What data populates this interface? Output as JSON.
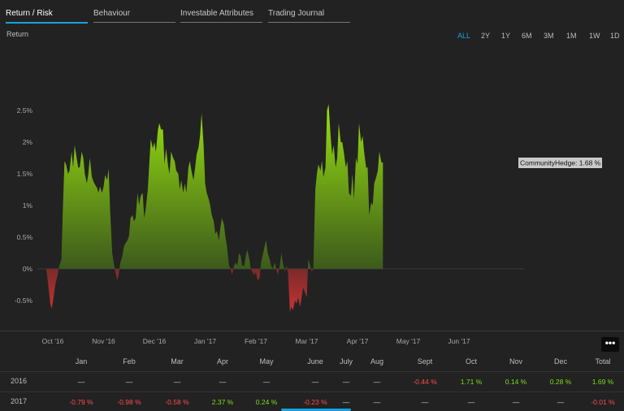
{
  "tabs": [
    {
      "label": "Return / Risk",
      "active": true
    },
    {
      "label": "Behaviour",
      "active": false
    },
    {
      "label": "Investable Attributes",
      "active": false
    },
    {
      "label": "Trading Journal",
      "active": false
    }
  ],
  "section_label": "Return",
  "ranges": [
    {
      "label": "ALL",
      "active": true
    },
    {
      "label": "2Y",
      "active": false
    },
    {
      "label": "1Y",
      "active": false
    },
    {
      "label": "6M",
      "active": false
    },
    {
      "label": "3M",
      "active": false
    },
    {
      "label": "1M",
      "active": false
    },
    {
      "label": "1W",
      "active": false
    },
    {
      "label": "1D",
      "active": false
    }
  ],
  "colors": {
    "positive": "#8fd41a",
    "negative": "#b53434",
    "accent": "#1ba1d8",
    "pos_text": "#7ddc1f",
    "neg_text": "#ff4b4b"
  },
  "chart_data": {
    "type": "area",
    "series_name": "CommunityHedge",
    "tooltip": "CommunityHedge: 1.68 %",
    "y_ticks": [
      "2.5%",
      "2%",
      "1.5%",
      "1%",
      "0.5%",
      "0%",
      "-0.5%"
    ],
    "y_tick_values": [
      2.5,
      2,
      1.5,
      1,
      0.5,
      0,
      -0.5
    ],
    "ylim": [
      -0.7,
      2.6
    ],
    "x_ticks": [
      "Oct '16",
      "Nov '16",
      "Dec '16",
      "Jan '17",
      "Feb '17",
      "Mar '17",
      "Apr '17",
      "May '17",
      "Jun '17"
    ],
    "x_tick_positions": [
      9.3,
      10.3,
      11.3,
      12.3,
      13.3,
      14.3,
      15.3,
      16.3,
      17.3
    ],
    "xlim": [
      9.0,
      19.0
    ],
    "points": [
      [
        9.17,
        0
      ],
      [
        9.2,
        -0.18
      ],
      [
        9.25,
        -0.55
      ],
      [
        9.28,
        -0.63
      ],
      [
        9.31,
        -0.48
      ],
      [
        9.35,
        -0.25
      ],
      [
        9.4,
        -0.08
      ],
      [
        9.43,
        0.05
      ],
      [
        9.47,
        0.15
      ],
      [
        9.5,
        1.0
      ],
      [
        9.53,
        1.7
      ],
      [
        9.56,
        1.65
      ],
      [
        9.6,
        1.5
      ],
      [
        9.63,
        1.55
      ],
      [
        9.67,
        1.85
      ],
      [
        9.7,
        1.6
      ],
      [
        9.73,
        1.95
      ],
      [
        9.77,
        1.75
      ],
      [
        9.8,
        1.6
      ],
      [
        9.83,
        1.6
      ],
      [
        9.87,
        1.85
      ],
      [
        9.9,
        1.75
      ],
      [
        9.93,
        1.5
      ],
      [
        9.97,
        1.35
      ],
      [
        10.0,
        1.5
      ],
      [
        10.03,
        1.75
      ],
      [
        10.07,
        1.45
      ],
      [
        10.1,
        1.38
      ],
      [
        10.13,
        1.33
      ],
      [
        10.17,
        1.28
      ],
      [
        10.2,
        1.2
      ],
      [
        10.23,
        1.3
      ],
      [
        10.27,
        1.2
      ],
      [
        10.3,
        1.3
      ],
      [
        10.33,
        1.48
      ],
      [
        10.37,
        1.4
      ],
      [
        10.4,
        1.58
      ],
      [
        10.43,
        0.9
      ],
      [
        10.47,
        0.25
      ],
      [
        10.5,
        0.1
      ],
      [
        10.53,
        -0.05
      ],
      [
        10.57,
        -0.18
      ],
      [
        10.6,
        -0.08
      ],
      [
        10.63,
        0.1
      ],
      [
        10.67,
        0.2
      ],
      [
        10.7,
        0.35
      ],
      [
        10.73,
        0.4
      ],
      [
        10.77,
        0.45
      ],
      [
        10.8,
        0.52
      ],
      [
        10.83,
        0.8
      ],
      [
        10.87,
        0.85
      ],
      [
        10.9,
        0.75
      ],
      [
        10.93,
        0.8
      ],
      [
        10.97,
        1.2
      ],
      [
        11.0,
        1.0
      ],
      [
        11.03,
        1.15
      ],
      [
        11.07,
        1.2
      ],
      [
        11.1,
        0.8
      ],
      [
        11.13,
        0.95
      ],
      [
        11.17,
        1.25
      ],
      [
        11.2,
        1.65
      ],
      [
        11.23,
        2.05
      ],
      [
        11.27,
        1.9
      ],
      [
        11.3,
        2.0
      ],
      [
        11.33,
        1.85
      ],
      [
        11.37,
        2.2
      ],
      [
        11.4,
        2.3
      ],
      [
        11.43,
        2.2
      ],
      [
        11.47,
        2.2
      ],
      [
        11.5,
        1.65
      ],
      [
        11.53,
        1.9
      ],
      [
        11.57,
        1.62
      ],
      [
        11.6,
        1.5
      ],
      [
        11.63,
        1.85
      ],
      [
        11.67,
        1.75
      ],
      [
        11.7,
        1.7
      ],
      [
        11.73,
        1.55
      ],
      [
        11.77,
        1.5
      ],
      [
        11.8,
        1.25
      ],
      [
        11.83,
        1.4
      ],
      [
        11.87,
        1.2
      ],
      [
        11.9,
        1.35
      ],
      [
        11.93,
        1.2
      ],
      [
        11.97,
        1.6
      ],
      [
        12.0,
        1.7
      ],
      [
        12.03,
        1.55
      ],
      [
        12.07,
        1.4
      ],
      [
        12.1,
        1.58
      ],
      [
        12.13,
        1.8
      ],
      [
        12.17,
        1.92
      ],
      [
        12.2,
        2.1
      ],
      [
        12.23,
        2.45
      ],
      [
        12.27,
        1.95
      ],
      [
        12.3,
        1.35
      ],
      [
        12.33,
        1.2
      ],
      [
        12.37,
        1.1
      ],
      [
        12.4,
        1.0
      ],
      [
        12.43,
        0.85
      ],
      [
        12.47,
        0.75
      ],
      [
        12.5,
        0.55
      ],
      [
        12.53,
        0.6
      ],
      [
        12.57,
        0.45
      ],
      [
        12.6,
        0.65
      ],
      [
        12.63,
        0.8
      ],
      [
        12.67,
        0.7
      ],
      [
        12.7,
        0.5
      ],
      [
        12.73,
        0.35
      ],
      [
        12.77,
        0.05
      ],
      [
        12.8,
        0
      ],
      [
        12.83,
        -0.1
      ],
      [
        12.87,
        0.05
      ],
      [
        12.9,
        0.1
      ],
      [
        12.93,
        0.05
      ],
      [
        12.97,
        0.25
      ],
      [
        13.0,
        0.2
      ],
      [
        13.03,
        0.05
      ],
      [
        13.07,
        0.05
      ],
      [
        13.1,
        0.2
      ],
      [
        13.13,
        0.3
      ],
      [
        13.17,
        0.15
      ],
      [
        13.2,
        0.0
      ],
      [
        13.23,
        -0.05
      ],
      [
        13.27,
        -0.1
      ],
      [
        13.3,
        -0.05
      ],
      [
        13.33,
        -0.18
      ],
      [
        13.37,
        -0.15
      ],
      [
        13.4,
        0.1
      ],
      [
        13.43,
        0.2
      ],
      [
        13.47,
        0.35
      ],
      [
        13.5,
        0.45
      ],
      [
        13.53,
        0.25
      ],
      [
        13.57,
        0.15
      ],
      [
        13.6,
        0.05
      ],
      [
        13.63,
        0.0
      ],
      [
        13.67,
        0.1
      ],
      [
        13.7,
        0.0
      ],
      [
        13.73,
        -0.1
      ],
      [
        13.77,
        0.05
      ],
      [
        13.8,
        0.25
      ],
      [
        13.83,
        0.1
      ],
      [
        13.87,
        -0.05
      ],
      [
        13.9,
        0.05
      ],
      [
        13.93,
        -0.05
      ],
      [
        13.97,
        -0.68
      ],
      [
        14.0,
        -0.6
      ],
      [
        14.03,
        -0.65
      ],
      [
        14.07,
        -0.5
      ],
      [
        14.1,
        -0.55
      ],
      [
        14.13,
        -0.45
      ],
      [
        14.17,
        -0.6
      ],
      [
        14.2,
        -0.45
      ],
      [
        14.23,
        -0.3
      ],
      [
        14.27,
        -0.38
      ],
      [
        14.3,
        -0.45
      ],
      [
        14.33,
        0.15
      ],
      [
        14.37,
        0.05
      ],
      [
        14.4,
        -0.05
      ],
      [
        14.43,
        0.0
      ],
      [
        14.47,
        1.25
      ],
      [
        14.5,
        1.5
      ],
      [
        14.53,
        1.65
      ],
      [
        14.57,
        1.55
      ],
      [
        14.6,
        1.7
      ],
      [
        14.63,
        1.45
      ],
      [
        14.67,
        1.6
      ],
      [
        14.7,
        2.5
      ],
      [
        14.73,
        2.6
      ],
      [
        14.77,
        2.1
      ],
      [
        14.8,
        1.8
      ],
      [
        14.83,
        1.95
      ],
      [
        14.87,
        1.6
      ],
      [
        14.9,
        1.75
      ],
      [
        14.93,
        2.3
      ],
      [
        14.97,
        2.0
      ],
      [
        15.0,
        2.0
      ],
      [
        15.03,
        1.85
      ],
      [
        15.07,
        1.6
      ],
      [
        15.1,
        1.7
      ],
      [
        15.13,
        1.2
      ],
      [
        15.17,
        1.15
      ],
      [
        15.2,
        1.5
      ],
      [
        15.23,
        1.1
      ],
      [
        15.27,
        1.75
      ],
      [
        15.3,
        1.65
      ],
      [
        15.33,
        2.3
      ],
      [
        15.37,
        2.0
      ],
      [
        15.4,
        2.1
      ],
      [
        15.43,
        1.85
      ],
      [
        15.47,
        1.6
      ],
      [
        15.5,
        1.6
      ],
      [
        15.53,
        0.85
      ],
      [
        15.57,
        1.05
      ],
      [
        15.6,
        1.0
      ],
      [
        15.63,
        1.35
      ],
      [
        15.67,
        1.45
      ],
      [
        15.7,
        1.55
      ],
      [
        15.73,
        1.85
      ],
      [
        15.77,
        1.68
      ],
      [
        15.8,
        1.68
      ],
      [
        15.8,
        0
      ]
    ],
    "point_x_note": ""
  },
  "monthly": {
    "headers": [
      "Jan",
      "Feb",
      "Mar",
      "Apr",
      "May",
      "June",
      "July",
      "Aug",
      "Sept",
      "Oct",
      "Nov",
      "Dec",
      "Total"
    ],
    "rows": [
      {
        "year": "2016",
        "values": [
          "—",
          "—",
          "—",
          "—",
          "—",
          "—",
          "—",
          "—",
          "-0.44 %",
          "1.71 %",
          "0.14 %",
          "0.28 %",
          "1.69 %"
        ]
      },
      {
        "year": "2017",
        "values": [
          "-0.79 %",
          "-0.98 %",
          "-0.58 %",
          "2.37 %",
          "0.24 %",
          "-0.23 %",
          "—",
          "—",
          "—",
          "—",
          "—",
          "—",
          "-0.01 %"
        ]
      }
    ],
    "more_label": "•••"
  }
}
